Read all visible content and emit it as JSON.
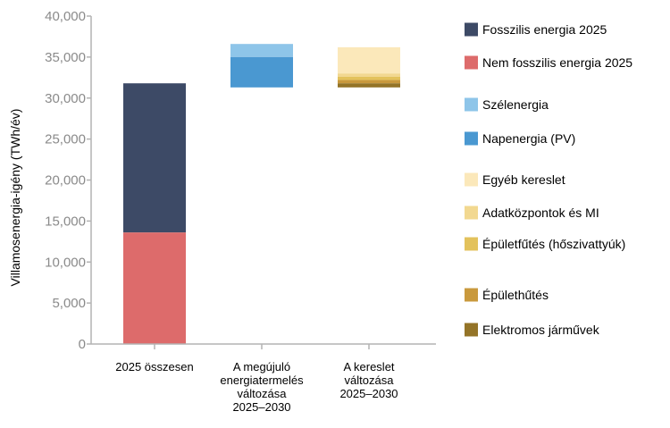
{
  "chart_data": {
    "type": "bar",
    "ylabel": "Villamosenergia-igény (TWh/év)",
    "ylim": [
      0,
      40000
    ],
    "yticks": [
      "0",
      "5,000",
      "10,000",
      "15,000",
      "20,000",
      "25,000",
      "30,000",
      "35,000",
      "40,000"
    ],
    "ytick_values": [
      0,
      5000,
      10000,
      15000,
      20000,
      25000,
      30000,
      35000,
      40000
    ],
    "categories": [
      [
        "2025 összesen"
      ],
      [
        "A megújuló",
        "energiatermelés",
        "változása",
        "2025–2030"
      ],
      [
        "A kereslet",
        "változása",
        "2025–2030"
      ]
    ],
    "grid": false,
    "legend_position": "right",
    "series": [
      {
        "name": "Fosszilis energia 2025",
        "color": "#3d4a66",
        "segments": [
          {
            "category": 0,
            "start": 13600,
            "end": 31800
          }
        ]
      },
      {
        "name": "Nem fosszilis energia 2025",
        "color": "#dd6b6b",
        "segments": [
          {
            "category": 0,
            "start": 0,
            "end": 13600
          }
        ]
      },
      {
        "name": "Szélenergia",
        "color": "#8ec5e9",
        "segments": [
          {
            "category": 1,
            "start": 35000,
            "end": 36600
          }
        ]
      },
      {
        "name": "Napenergia (PV)",
        "color": "#4a98d1",
        "segments": [
          {
            "category": 1,
            "start": 31300,
            "end": 35000
          }
        ]
      },
      {
        "name": "Egyéb kereslet",
        "color": "#fbe8ba",
        "segments": [
          {
            "category": 2,
            "start": 33000,
            "end": 36200
          }
        ]
      },
      {
        "name": "Adatközpontok és MI",
        "color": "#f2d890",
        "segments": [
          {
            "category": 2,
            "start": 32600,
            "end": 33000
          }
        ]
      },
      {
        "name": "Épületfűtés (hőszivattyúk)",
        "color": "#e3c25c",
        "segments": [
          {
            "category": 2,
            "start": 32200,
            "end": 32600
          }
        ]
      },
      {
        "name": "Épülethűtés",
        "color": "#c9993d",
        "segments": [
          {
            "category": 2,
            "start": 31800,
            "end": 32200
          }
        ]
      },
      {
        "name": "Elektromos járművek",
        "color": "#947428",
        "segments": [
          {
            "category": 2,
            "start": 31300,
            "end": 31800
          }
        ]
      }
    ]
  }
}
